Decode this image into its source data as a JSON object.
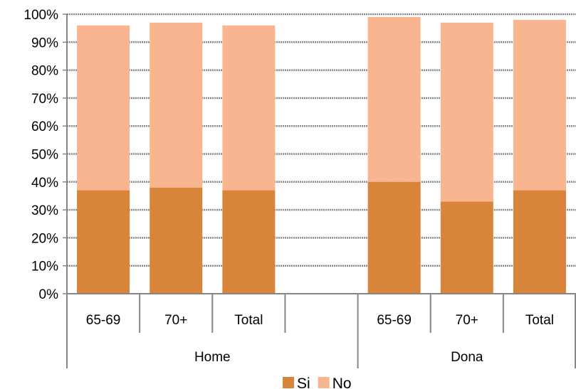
{
  "chart_data": {
    "type": "bar",
    "stacked": true,
    "categories": [
      "65-69",
      "70+",
      "Total",
      "",
      "65-69",
      "70+",
      "Total"
    ],
    "groups": [
      {
        "label": "Home",
        "span": 4
      },
      {
        "label": "Dona",
        "span": 3
      }
    ],
    "series": [
      {
        "name": "Si",
        "color": "#D9843B",
        "values": [
          37,
          38,
          37,
          null,
          40,
          33,
          37
        ]
      },
      {
        "name": "No",
        "color": "#F9B58F",
        "values": [
          59,
          59,
          59,
          null,
          59,
          64,
          61
        ]
      }
    ],
    "ylim": [
      0,
      100
    ],
    "yticks": [
      "0%",
      "10%",
      "20%",
      "30%",
      "40%",
      "50%",
      "60%",
      "70%",
      "80%",
      "90%",
      "100%"
    ],
    "grid": true,
    "legend_position": "bottom",
    "title": "",
    "xlabel": "",
    "ylabel": ""
  }
}
